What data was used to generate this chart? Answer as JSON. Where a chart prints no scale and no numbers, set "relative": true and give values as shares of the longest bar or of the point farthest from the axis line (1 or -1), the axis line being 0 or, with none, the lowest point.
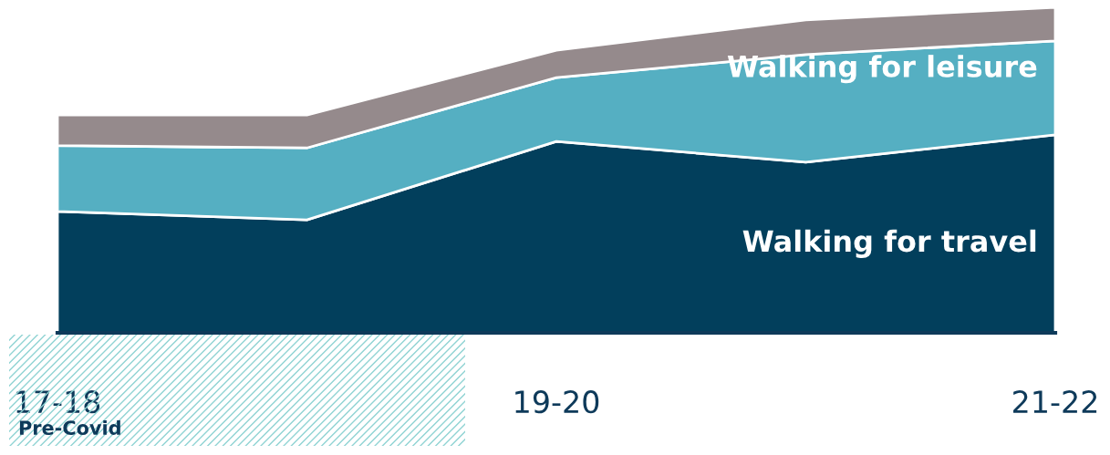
{
  "chart_data": {
    "type": "area",
    "stacked": true,
    "relative": true,
    "legend": false,
    "categories": [
      "17-18",
      null,
      "19-20",
      null,
      "21-22"
    ],
    "series": [
      {
        "name": "Walking for travel",
        "color": "#023f5c",
        "values": [
          0.373,
          0.347,
          0.588,
          0.524,
          0.608
        ]
      },
      {
        "name": "Walking for leisure",
        "color": "#55afc2",
        "values": [
          0.202,
          0.221,
          0.196,
          0.331,
          0.289
        ]
      },
      {
        "color": "#958a8c",
        "values": [
          0.095,
          0.101,
          0.084,
          0.106,
          0.103
        ]
      }
    ],
    "annotations": [
      "Pre-Covid"
    ]
  }
}
